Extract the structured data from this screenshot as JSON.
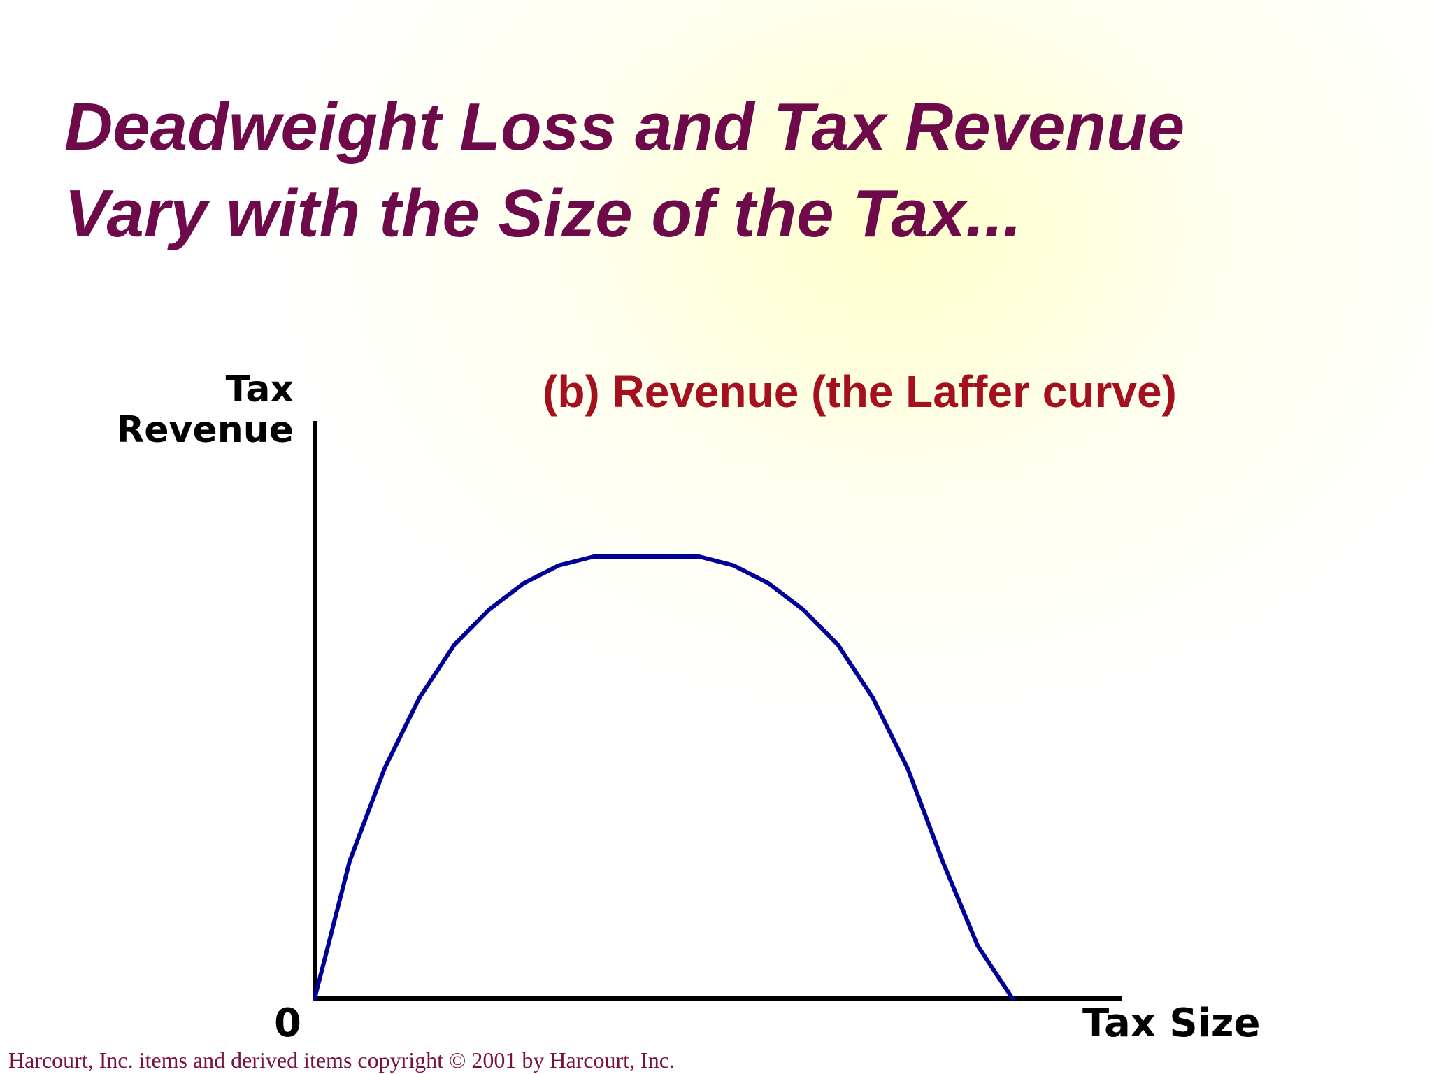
{
  "slide": {
    "title_line1": "Deadweight Loss and Tax Revenue",
    "title_line2": "Vary with the Size of the Tax...",
    "footer": "Harcourt, Inc. items and derived items copyright © 2001 by Harcourt, Inc."
  },
  "chart_data": {
    "type": "line",
    "title": "(b) Revenue (the Laffer curve)",
    "ylabel_line1": "Tax",
    "ylabel_line2": "Revenue",
    "xlabel": "Tax Size",
    "origin_label": "0",
    "xlim": [
      0,
      100
    ],
    "ylim": [
      0,
      100
    ],
    "grid": false,
    "legend": "none",
    "line_color": "#000099",
    "axis_color": "#000000",
    "series": [
      {
        "x": [
          0,
          5,
          10,
          15,
          20,
          25,
          30,
          35,
          40,
          44.9,
          45,
          55,
          55.1,
          60,
          65,
          70,
          75,
          80,
          85,
          90,
          95,
          100
        ],
        "y": [
          0,
          31,
          52,
          68,
          80,
          88,
          94,
          98,
          100,
          100,
          100,
          100,
          100,
          98,
          94,
          88,
          80,
          68,
          52,
          31,
          12,
          0
        ]
      }
    ]
  }
}
